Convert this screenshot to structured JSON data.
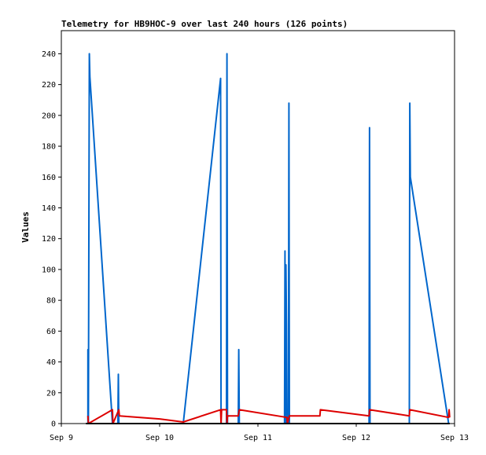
{
  "chart_data": {
    "type": "line",
    "title": "Telemetry for HB9HOC-9 over last 240 hours (126 points)",
    "xlabel": "",
    "ylabel": "Values",
    "xlim": [
      0,
      4
    ],
    "ylim": [
      0,
      255
    ],
    "x_ticks": [
      {
        "value": 0,
        "label": "Sep 9"
      },
      {
        "value": 1,
        "label": "Sep 10"
      },
      {
        "value": 2,
        "label": "Sep 11"
      },
      {
        "value": 3,
        "label": "Sep 12"
      },
      {
        "value": 4,
        "label": "Sep 13"
      }
    ],
    "y_ticks": [
      0,
      20,
      40,
      60,
      80,
      100,
      120,
      140,
      160,
      180,
      200,
      220,
      240
    ],
    "grid": false,
    "legend": "none",
    "series": [
      {
        "color": "#0066cc",
        "points": [
          [
            0.27,
            0
          ],
          [
            0.27,
            48
          ],
          [
            0.275,
            0
          ],
          [
            0.285,
            240
          ],
          [
            0.29,
            225
          ],
          [
            0.52,
            0
          ],
          [
            0.575,
            0
          ],
          [
            0.58,
            32
          ],
          [
            0.585,
            0
          ],
          [
            1.24,
            0
          ],
          [
            1.62,
            224
          ],
          [
            1.625,
            0
          ],
          [
            1.68,
            0
          ],
          [
            1.685,
            240
          ],
          [
            1.69,
            0
          ],
          [
            1.8,
            0
          ],
          [
            1.805,
            48
          ],
          [
            1.81,
            0
          ],
          [
            2.27,
            0
          ],
          [
            2.275,
            112
          ],
          [
            2.28,
            0
          ],
          [
            2.285,
            103
          ],
          [
            2.29,
            65
          ],
          [
            2.295,
            0
          ],
          [
            2.31,
            0
          ],
          [
            2.315,
            208
          ],
          [
            2.32,
            0
          ],
          [
            3.13,
            0
          ],
          [
            3.135,
            192
          ],
          [
            3.14,
            0
          ],
          [
            3.54,
            0
          ],
          [
            3.545,
            208
          ],
          [
            3.55,
            160
          ],
          [
            3.94,
            0
          ]
        ]
      },
      {
        "color": "#dd0000",
        "points": [
          [
            0.27,
            5
          ],
          [
            0.275,
            0
          ],
          [
            0.52,
            9
          ],
          [
            0.525,
            0
          ],
          [
            0.585,
            9
          ],
          [
            0.59,
            5
          ],
          [
            1.0,
            3
          ],
          [
            1.24,
            1
          ],
          [
            1.62,
            9
          ],
          [
            1.625,
            0
          ],
          [
            1.63,
            9
          ],
          [
            1.68,
            9
          ],
          [
            1.685,
            0
          ],
          [
            1.69,
            5
          ],
          [
            1.8,
            5
          ],
          [
            1.81,
            9
          ],
          [
            2.295,
            4
          ],
          [
            2.3,
            0
          ],
          [
            2.315,
            4
          ],
          [
            2.32,
            5
          ],
          [
            2.63,
            5
          ],
          [
            2.635,
            9
          ],
          [
            3.13,
            5
          ],
          [
            3.135,
            9
          ],
          [
            3.54,
            5
          ],
          [
            3.545,
            9
          ],
          [
            3.94,
            4
          ],
          [
            3.945,
            9
          ],
          [
            3.95,
            4
          ]
        ]
      },
      {
        "color": "#000000",
        "points": [
          [
            0.25,
            0
          ],
          [
            3.95,
            0
          ]
        ]
      }
    ]
  }
}
